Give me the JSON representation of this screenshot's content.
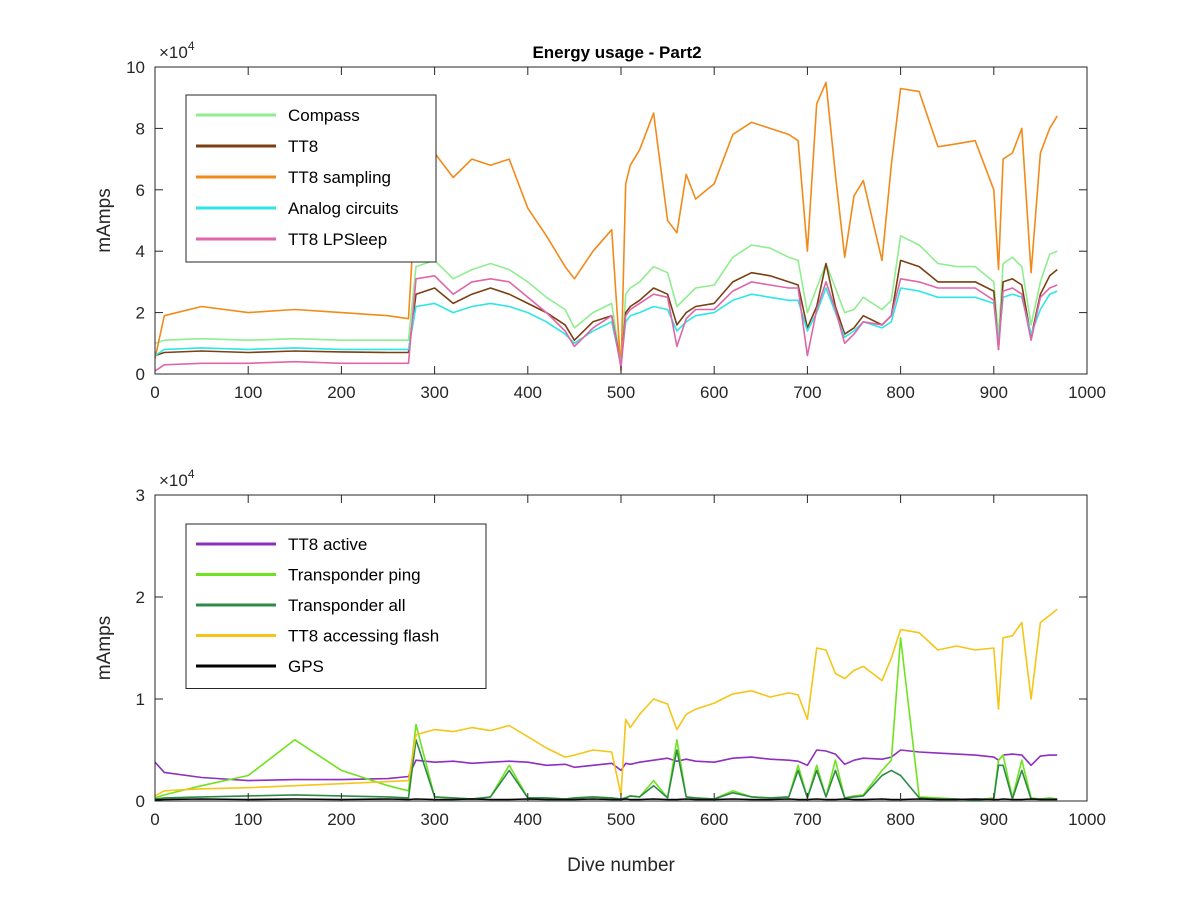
{
  "figure": {
    "title": "Energy usage - Part2"
  },
  "chart_data": [
    {
      "type": "line",
      "title": "Energy usage - Part2",
      "xlabel": "",
      "ylabel": "mAmps",
      "exponent_label": "×10",
      "exponent_power": "4",
      "xlim": [
        0,
        1000
      ],
      "ylim": [
        0,
        100000
      ],
      "xticks": [
        "0",
        "100",
        "200",
        "300",
        "400",
        "500",
        "600",
        "700",
        "800",
        "900",
        "1000"
      ],
      "yticks": [
        "0",
        "2",
        "4",
        "6",
        "8",
        "10"
      ],
      "grid": false,
      "legend_position": "top-left",
      "x": [
        0,
        10,
        50,
        100,
        150,
        200,
        250,
        272,
        280,
        300,
        320,
        340,
        360,
        380,
        400,
        420,
        440,
        450,
        470,
        490,
        500,
        505,
        510,
        520,
        535,
        550,
        560,
        570,
        580,
        600,
        620,
        640,
        660,
        680,
        690,
        700,
        710,
        720,
        730,
        740,
        750,
        760,
        780,
        790,
        800,
        820,
        840,
        860,
        880,
        900,
        905,
        910,
        920,
        930,
        940,
        950,
        960,
        968
      ],
      "series": [
        {
          "name": "Compass",
          "color": "#90EE90",
          "values": [
            10000,
            11000,
            11500,
            11000,
            11500,
            11000,
            11000,
            11000,
            35000,
            37000,
            31000,
            34000,
            36000,
            34000,
            30000,
            25000,
            21000,
            15000,
            20000,
            23000,
            3000,
            26000,
            28000,
            30000,
            35000,
            33000,
            22000,
            25000,
            28000,
            29000,
            38000,
            42000,
            41000,
            38000,
            37000,
            20000,
            28000,
            36000,
            28000,
            20000,
            21000,
            25000,
            21000,
            24000,
            45000,
            42000,
            36000,
            35000,
            35000,
            30000,
            12000,
            36000,
            38000,
            35000,
            16000,
            30000,
            39000,
            40000
          ]
        },
        {
          "name": "TT8",
          "color": "#7B3F12",
          "values": [
            6000,
            7000,
            7500,
            7000,
            7500,
            7200,
            7000,
            7000,
            26000,
            28000,
            23000,
            26000,
            28000,
            26000,
            23000,
            20000,
            16000,
            11000,
            17000,
            19000,
            3000,
            20000,
            22000,
            24000,
            28000,
            26000,
            16000,
            20000,
            22000,
            23000,
            30000,
            33000,
            32000,
            30000,
            29000,
            15000,
            22000,
            36000,
            22000,
            13000,
            15000,
            19000,
            16000,
            19000,
            37000,
            35000,
            30000,
            30000,
            30000,
            27000,
            8000,
            30000,
            31000,
            29000,
            12000,
            26000,
            32000,
            34000
          ]
        },
        {
          "name": "TT8 sampling",
          "color": "#F28A1A",
          "values": [
            5000,
            19000,
            22000,
            20000,
            21000,
            20000,
            19000,
            18000,
            60000,
            72000,
            64000,
            70000,
            68000,
            70000,
            54000,
            45000,
            35000,
            31000,
            40000,
            47000,
            1000,
            62000,
            68000,
            73000,
            85000,
            50000,
            46000,
            65000,
            57000,
            62000,
            78000,
            82000,
            80000,
            78000,
            76000,
            40000,
            88000,
            95000,
            65000,
            38000,
            58000,
            63000,
            37000,
            68000,
            93000,
            92000,
            74000,
            75000,
            76000,
            60000,
            34000,
            70000,
            72000,
            80000,
            33000,
            72000,
            80000,
            84000
          ]
        },
        {
          "name": "Analog circuits",
          "color": "#2EE6E6",
          "values": [
            6000,
            8000,
            8500,
            8000,
            8500,
            8000,
            8000,
            8000,
            22000,
            23000,
            20000,
            22000,
            23000,
            22000,
            20000,
            17000,
            13000,
            10000,
            14000,
            17000,
            3000,
            17000,
            19000,
            20000,
            22000,
            21000,
            14000,
            17000,
            19000,
            20000,
            24000,
            26000,
            25000,
            24000,
            24000,
            14000,
            20000,
            28000,
            20000,
            12000,
            14000,
            17000,
            15000,
            17000,
            28000,
            27000,
            25000,
            25000,
            25000,
            23000,
            10000,
            25000,
            26000,
            25000,
            13000,
            21000,
            26000,
            27000
          ]
        },
        {
          "name": "TT8 LPSleep",
          "color": "#E066A8",
          "values": [
            1000,
            3000,
            3500,
            3500,
            4000,
            3500,
            3500,
            3500,
            31000,
            32000,
            26000,
            30000,
            31000,
            30000,
            25000,
            20000,
            14000,
            9000,
            15000,
            19000,
            2000,
            19000,
            21000,
            23000,
            26000,
            25000,
            9000,
            18000,
            21000,
            21000,
            27000,
            30000,
            29000,
            28000,
            28000,
            6000,
            21000,
            30000,
            21000,
            10000,
            13000,
            17000,
            16000,
            19000,
            31000,
            30000,
            28000,
            28000,
            28000,
            24000,
            8000,
            27000,
            28000,
            26000,
            11000,
            25000,
            28000,
            29000
          ]
        }
      ]
    },
    {
      "type": "line",
      "title": "",
      "xlabel": "Dive number",
      "ylabel": "mAmps",
      "exponent_label": "×10",
      "exponent_power": "4",
      "xlim": [
        0,
        1000
      ],
      "ylim": [
        0,
        30000
      ],
      "xticks": [
        "0",
        "100",
        "200",
        "300",
        "400",
        "500",
        "600",
        "700",
        "800",
        "900",
        "1000"
      ],
      "yticks": [
        "0",
        "1",
        "2",
        "3"
      ],
      "grid": false,
      "legend_position": "top-left",
      "x": [
        0,
        10,
        50,
        100,
        150,
        200,
        250,
        272,
        280,
        300,
        320,
        340,
        360,
        380,
        400,
        420,
        440,
        450,
        470,
        490,
        500,
        505,
        510,
        520,
        535,
        550,
        560,
        570,
        580,
        600,
        620,
        640,
        660,
        680,
        690,
        700,
        710,
        720,
        730,
        740,
        750,
        760,
        780,
        790,
        800,
        820,
        840,
        860,
        880,
        900,
        905,
        910,
        920,
        930,
        940,
        950,
        960,
        968
      ],
      "series": [
        {
          "name": "TT8 active",
          "color": "#8E2FBF",
          "values": [
            3800,
            2800,
            2300,
            2000,
            2100,
            2100,
            2200,
            2400,
            4000,
            3800,
            3900,
            3700,
            3800,
            3900,
            3800,
            3500,
            3600,
            3300,
            3500,
            3700,
            3000,
            3700,
            3600,
            3800,
            4000,
            4200,
            3900,
            4100,
            3900,
            3800,
            4200,
            4300,
            4100,
            4000,
            3900,
            3500,
            5000,
            4900,
            4600,
            3600,
            4000,
            4200,
            4100,
            4300,
            5000,
            4800,
            4700,
            4600,
            4500,
            4300,
            4000,
            4500,
            4600,
            4500,
            3500,
            4400,
            4500,
            4500
          ]
        },
        {
          "name": "Transponder ping",
          "color": "#6FE31F",
          "values": [
            300,
            600,
            1500,
            2500,
            6000,
            3000,
            1500,
            1000,
            7500,
            400,
            300,
            200,
            400,
            3500,
            300,
            300,
            200,
            300,
            400,
            300,
            200,
            300,
            500,
            400,
            2000,
            300,
            6000,
            400,
            300,
            200,
            1000,
            400,
            300,
            400,
            3500,
            300,
            3500,
            400,
            4000,
            300,
            500,
            600,
            3000,
            4000,
            16000,
            400,
            300,
            200,
            100,
            300,
            4000,
            4500,
            300,
            4000,
            300,
            200,
            300,
            200
          ]
        },
        {
          "name": "Transponder all",
          "color": "#2E8B47",
          "values": [
            200,
            300,
            400,
            500,
            600,
            500,
            400,
            300,
            6000,
            400,
            300,
            200,
            400,
            3000,
            300,
            300,
            200,
            300,
            400,
            300,
            200,
            300,
            500,
            400,
            1500,
            300,
            5000,
            400,
            300,
            200,
            800,
            400,
            300,
            400,
            3000,
            300,
            3000,
            400,
            3000,
            300,
            400,
            500,
            2500,
            3000,
            2500,
            300,
            200,
            200,
            100,
            200,
            3500,
            3500,
            200,
            3000,
            200,
            200,
            200,
            200
          ]
        },
        {
          "name": "TT8 accessing flash",
          "color": "#F5C518",
          "values": [
            500,
            1000,
            1200,
            1300,
            1500,
            1700,
            1900,
            2000,
            6500,
            7000,
            6800,
            7200,
            6900,
            7400,
            6300,
            5200,
            4300,
            4500,
            5000,
            4800,
            600,
            8000,
            7200,
            8500,
            10000,
            9500,
            7000,
            8500,
            9000,
            9600,
            10500,
            10800,
            10200,
            10600,
            10400,
            8000,
            15000,
            14800,
            12500,
            12000,
            12800,
            13200,
            11800,
            14000,
            16800,
            16500,
            14800,
            15200,
            14800,
            15000,
            9000,
            16000,
            16200,
            17500,
            10000,
            17500,
            18200,
            18800
          ]
        },
        {
          "name": "GPS",
          "color": "#000000",
          "values": [
            100,
            150,
            200,
            150,
            200,
            150,
            200,
            150,
            200,
            150,
            150,
            200,
            150,
            150,
            200,
            150,
            150,
            150,
            200,
            150,
            150,
            200,
            150,
            150,
            200,
            150,
            150,
            200,
            150,
            150,
            200,
            150,
            150,
            200,
            150,
            150,
            200,
            150,
            150,
            200,
            150,
            150,
            200,
            150,
            150,
            200,
            150,
            150,
            200,
            150,
            150,
            200,
            150,
            150,
            200,
            150,
            150,
            150
          ]
        }
      ]
    }
  ]
}
